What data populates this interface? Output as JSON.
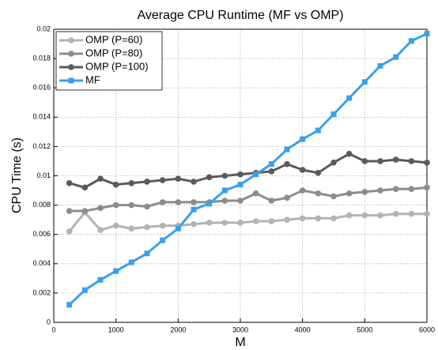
{
  "chart_data": {
    "type": "line",
    "title": "Average CPU Runtime (MF vs OMP)",
    "xlabel": "M",
    "ylabel": "CPU Time (s)",
    "x": [
      250,
      500,
      750,
      1000,
      1250,
      1500,
      1750,
      2000,
      2250,
      2500,
      2750,
      3000,
      3250,
      3500,
      3750,
      4000,
      4250,
      4500,
      4750,
      5000,
      5250,
      5500,
      5750,
      6000
    ],
    "series": [
      {
        "name": "OMP (P=60)",
        "color": "#b3b3b3",
        "marker": "circle",
        "values": [
          0.0062,
          0.0075,
          0.0063,
          0.0066,
          0.0064,
          0.0065,
          0.0066,
          0.0066,
          0.0067,
          0.0068,
          0.0068,
          0.0068,
          0.0069,
          0.0069,
          0.007,
          0.0071,
          0.0071,
          0.0071,
          0.0073,
          0.0073,
          0.0073,
          0.0074,
          0.0074,
          0.0074
        ]
      },
      {
        "name": "OMP (P=80)",
        "color": "#8c8c8c",
        "marker": "circle",
        "values": [
          0.0076,
          0.0076,
          0.0078,
          0.008,
          0.008,
          0.0079,
          0.0082,
          0.0082,
          0.0082,
          0.0082,
          0.0083,
          0.0083,
          0.0088,
          0.0083,
          0.0085,
          0.009,
          0.0088,
          0.0086,
          0.0088,
          0.0089,
          0.009,
          0.0091,
          0.0091,
          0.0092
        ]
      },
      {
        "name": "OMP (P=100)",
        "color": "#5a5a5a",
        "marker": "circle",
        "values": [
          0.0095,
          0.0092,
          0.0098,
          0.0094,
          0.0095,
          0.0096,
          0.0097,
          0.0098,
          0.0096,
          0.0099,
          0.01,
          0.0101,
          0.0102,
          0.0103,
          0.0108,
          0.0104,
          0.0102,
          0.0109,
          0.0115,
          0.011,
          0.011,
          0.0111,
          0.011,
          0.0109
        ]
      },
      {
        "name": "MF",
        "color": "#3aa0e8",
        "marker": "square",
        "values": [
          0.0012,
          0.0022,
          0.0029,
          0.0035,
          0.0041,
          0.0047,
          0.0056,
          0.0064,
          0.0077,
          0.0081,
          0.009,
          0.0094,
          0.0101,
          0.0108,
          0.0118,
          0.0125,
          0.0131,
          0.0142,
          0.0153,
          0.0164,
          0.0175,
          0.0181,
          0.0192,
          0.0197
        ]
      }
    ],
    "xlim": [
      0,
      6000
    ],
    "xticks": [
      0,
      1000,
      2000,
      3000,
      4000,
      5000,
      6000
    ],
    "ylim": [
      0,
      0.02
    ],
    "yticks": [
      0,
      0.002,
      0.004,
      0.006,
      0.008,
      0.01,
      0.012,
      0.014,
      0.016,
      0.018,
      0.02
    ],
    "grid": true,
    "legend": "upper left"
  }
}
